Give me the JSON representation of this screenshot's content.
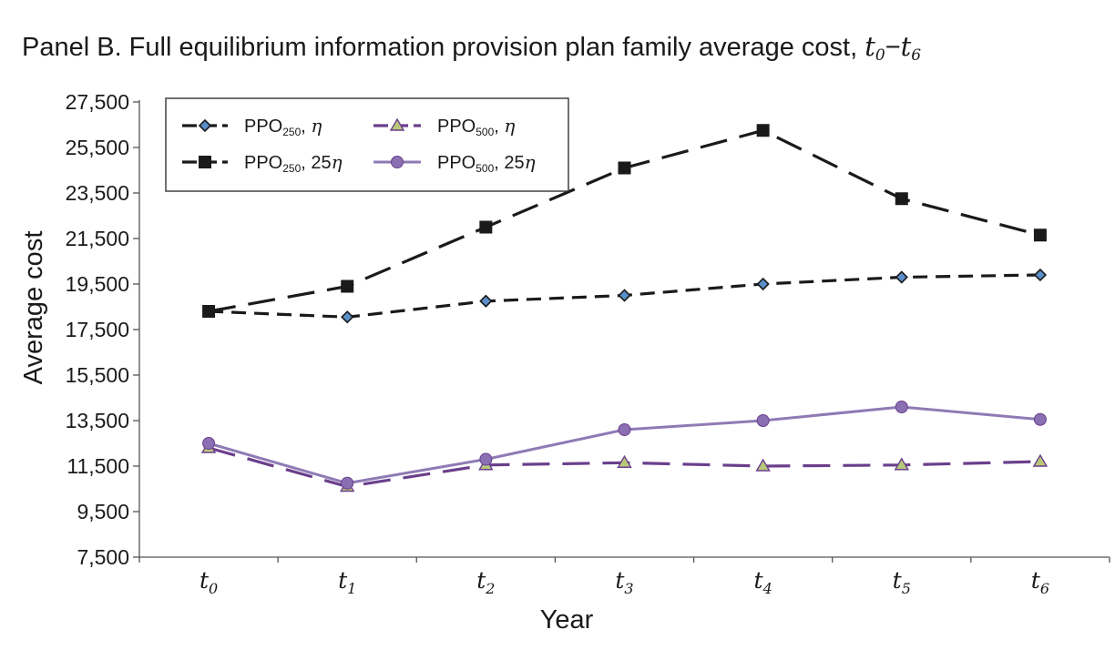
{
  "title": {
    "prefix": "Panel B. Full equilibrium information provision plan family average cost,",
    "sym_a": "t",
    "sub_a": "0",
    "dash": "−",
    "sym_b": "t",
    "sub_b": "6"
  },
  "colors": {
    "black": "#1a1a1a",
    "diamond_fill": "#5b8fc9",
    "triangle_fill": "#b8c97a",
    "purple_dark": "#6b3f8c",
    "purple_light": "#8f7ab5",
    "circle_fill": "#8a6fb3"
  },
  "chart_data": {
    "type": "line",
    "xlabel": "Year",
    "ylabel": "Average cost",
    "ylim": [
      7500,
      27500
    ],
    "yticks": [
      "7,500",
      "9,500",
      "11,500",
      "13,500",
      "15,500",
      "17,500",
      "19,500",
      "21,500",
      "23,500",
      "25,500",
      "27,500"
    ],
    "categories": [
      {
        "base": "t",
        "sub": "0"
      },
      {
        "base": "t",
        "sub": "1"
      },
      {
        "base": "t",
        "sub": "2"
      },
      {
        "base": "t",
        "sub": "3"
      },
      {
        "base": "t",
        "sub": "4"
      },
      {
        "base": "t",
        "sub": "5"
      },
      {
        "base": "t",
        "sub": "6"
      }
    ],
    "legend_position": "top-left",
    "grid": false,
    "series": [
      {
        "name_base": "PPO",
        "name_sub": "250",
        "name_suffix": ", ",
        "name_eta": "η",
        "marker": "diamond",
        "line": "short-dash",
        "color_key": "black",
        "values": [
          18300,
          18050,
          18750,
          19000,
          19500,
          19800,
          19900
        ]
      },
      {
        "name_base": "PPO",
        "name_sub": "250",
        "name_suffix": ", 25",
        "name_eta": "η",
        "marker": "square",
        "line": "long-dash",
        "color_key": "black",
        "values": [
          18300,
          19400,
          22000,
          24600,
          26250,
          23250,
          21650
        ]
      },
      {
        "name_base": "PPO",
        "name_sub": "500",
        "name_suffix": ", ",
        "name_eta": "η",
        "marker": "triangle",
        "line": "long-dash",
        "color_key": "purple_dark",
        "values": [
          12300,
          10600,
          11550,
          11650,
          11500,
          11550,
          11700
        ]
      },
      {
        "name_base": "PPO",
        "name_sub": "500",
        "name_suffix": ", 25",
        "name_eta": "η",
        "marker": "circle",
        "line": "solid",
        "color_key": "purple_light",
        "values": [
          12500,
          10750,
          11800,
          13100,
          13500,
          14100,
          13550
        ]
      }
    ]
  }
}
